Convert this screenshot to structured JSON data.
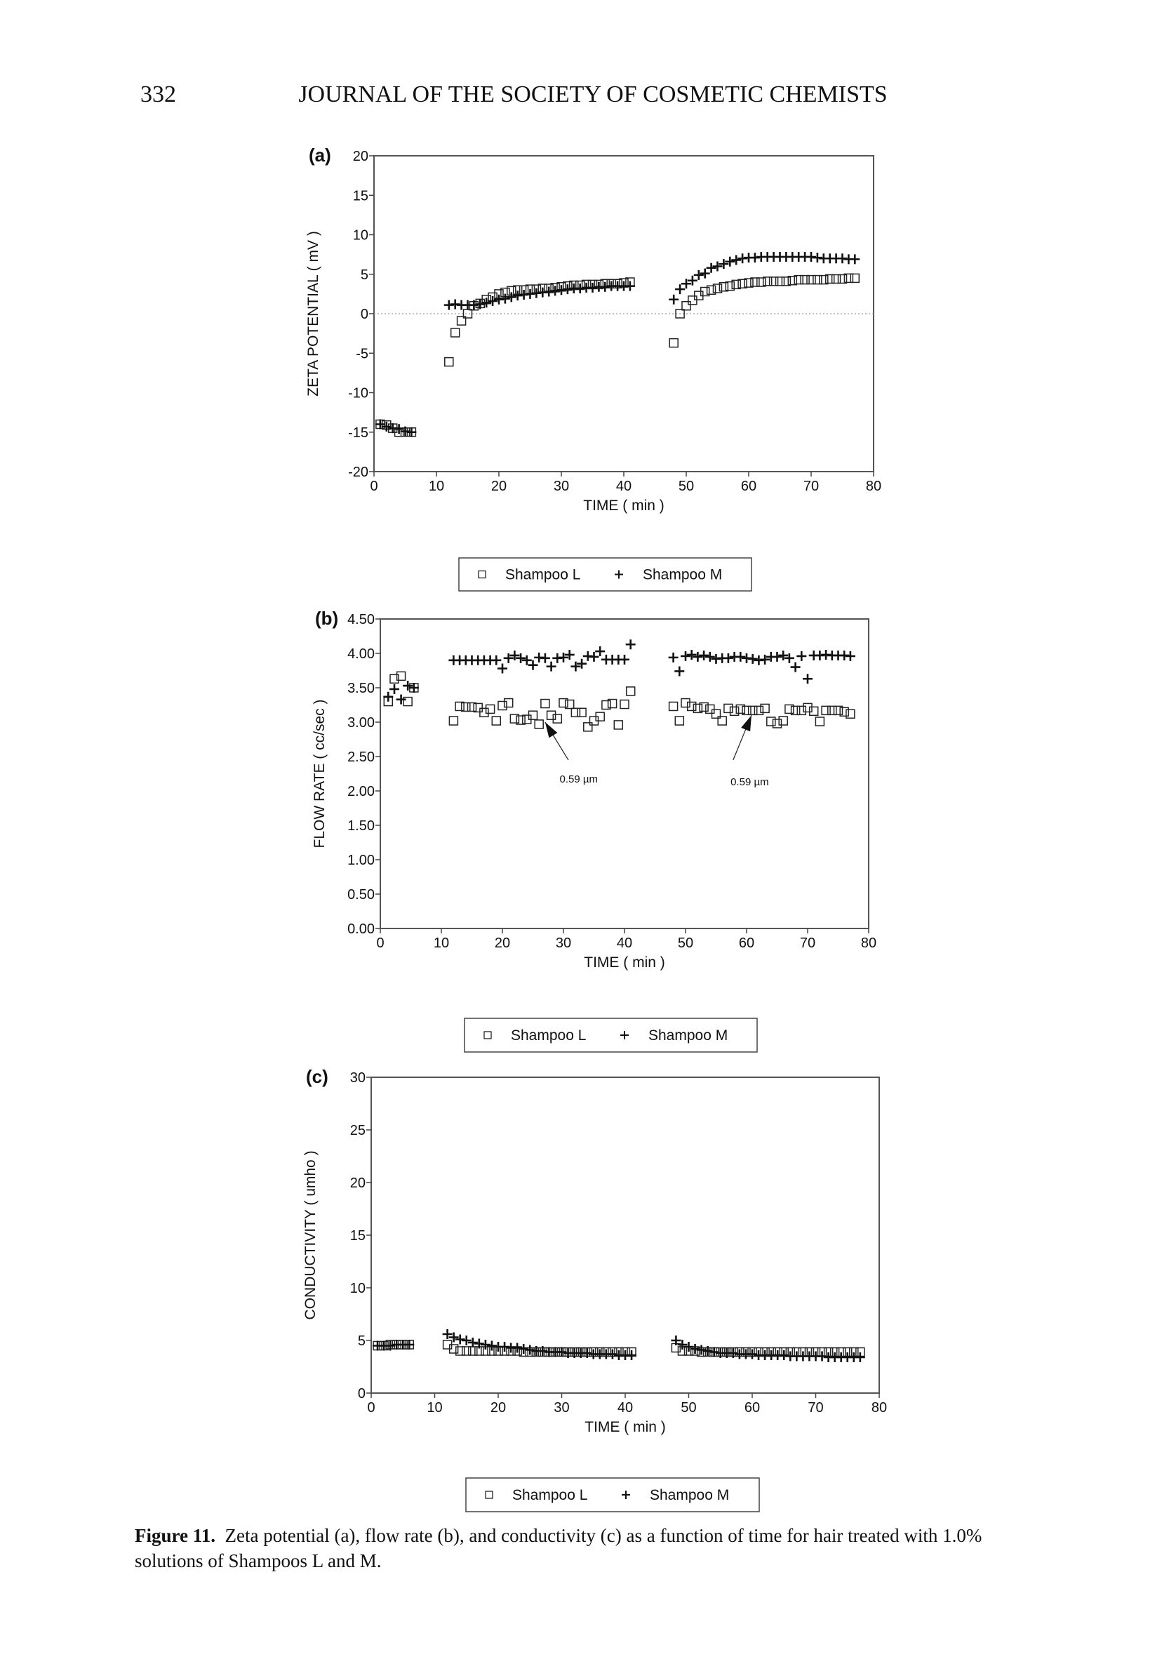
{
  "page": {
    "number": "332",
    "journal_title": "JOURNAL OF THE SOCIETY OF COSMETIC CHEMISTS"
  },
  "caption": {
    "label": "Figure 11.",
    "text": "Zeta potential (a), flow rate (b), and conductivity (c) as a function of time for hair treated with 1.0% solutions of Shampoos L and M."
  },
  "chart_data": [
    {
      "type": "scatter",
      "panel": "(a)",
      "xlabel": "TIME  ( min )",
      "ylabel": "ZETA POTENTIAL  ( mV )",
      "xlim": [
        0,
        80
      ],
      "ylim": [
        -20,
        20
      ],
      "xticks": [
        0,
        10,
        20,
        30,
        40,
        50,
        60,
        70,
        80
      ],
      "yticks": [
        20,
        15,
        10,
        5,
        0,
        -5,
        -10,
        -15,
        -20
      ],
      "ytick_labels": [
        "20",
        "15",
        "10",
        "5",
        "0",
        "-5",
        "-10",
        "-15",
        "-20"
      ],
      "reference_line": 0,
      "legend": [
        "Shampoo L",
        "Shampoo M"
      ],
      "x": [
        1,
        2,
        3,
        4,
        5,
        6,
        12,
        13,
        14,
        15,
        16,
        17,
        18,
        19,
        20,
        21,
        22,
        23,
        24,
        25,
        26,
        27,
        28,
        29,
        30,
        31,
        32,
        33,
        34,
        35,
        36,
        37,
        38,
        39,
        40,
        41,
        48,
        49,
        50,
        51,
        52,
        53,
        54,
        55,
        56,
        57,
        58,
        59,
        60,
        61,
        62,
        63,
        64,
        65,
        66,
        67,
        68,
        69,
        70,
        71,
        72,
        73,
        74,
        75,
        76,
        77
      ],
      "series": [
        {
          "name": "Shampoo L",
          "marker": "square",
          "values": [
            -14,
            -14.1,
            -14.5,
            -15,
            -15,
            -15,
            -6.1,
            -2.4,
            -0.9,
            0,
            1.0,
            1.3,
            1.8,
            2.1,
            2.5,
            2.7,
            2.9,
            3.0,
            3.0,
            3.1,
            3.1,
            3.2,
            3.2,
            3.3,
            3.4,
            3.5,
            3.6,
            3.6,
            3.7,
            3.7,
            3.7,
            3.8,
            3.8,
            3.8,
            3.9,
            4.0,
            -3.7,
            0,
            1.0,
            1.7,
            2.3,
            2.8,
            3.0,
            3.2,
            3.4,
            3.5,
            3.7,
            3.8,
            3.9,
            4.0,
            4.0,
            4.1,
            4.1,
            4.1,
            4.1,
            4.2,
            4.3,
            4.3,
            4.3,
            4.3,
            4.3,
            4.4,
            4.4,
            4.4,
            4.5,
            4.5
          ]
        },
        {
          "name": "Shampoo M",
          "marker": "plus",
          "values": [
            -14,
            -14.3,
            -14.5,
            -14.6,
            -14.9,
            -15,
            1.1,
            1.2,
            1.1,
            1.1,
            1.1,
            1.2,
            1.4,
            1.6,
            1.8,
            1.9,
            2.1,
            2.3,
            2.4,
            2.5,
            2.6,
            2.7,
            2.8,
            2.9,
            3.0,
            3.1,
            3.2,
            3.2,
            3.3,
            3.3,
            3.4,
            3.4,
            3.5,
            3.5,
            3.5,
            3.5,
            1.8,
            3.1,
            3.8,
            4.2,
            4.9,
            5.1,
            5.8,
            6.0,
            6.3,
            6.6,
            6.8,
            7.0,
            7.1,
            7.1,
            7.2,
            7.2,
            7.2,
            7.2,
            7.2,
            7.2,
            7.2,
            7.2,
            7.2,
            7.1,
            7.0,
            7.0,
            7.0,
            7.0,
            6.9,
            6.9
          ]
        }
      ]
    },
    {
      "type": "scatter",
      "panel": "(b)",
      "xlabel": "TIME  ( min )",
      "ylabel": "FLOW RATE  ( cc/sec )",
      "xlim": [
        0,
        80
      ],
      "ylim": [
        0,
        4.5
      ],
      "xticks": [
        0,
        10,
        20,
        30,
        40,
        50,
        60,
        70,
        80
      ],
      "yticks": [
        4.5,
        4,
        3.5,
        3,
        2.5,
        2,
        1.5,
        1,
        0.5,
        0
      ],
      "ytick_labels": [
        "4.50",
        "4.00",
        "3.50",
        "3.00",
        "2.50",
        "2.00",
        "1.50",
        "1.00",
        "0.50",
        "0.00"
      ],
      "legend": [
        "Shampoo L",
        "Shampoo M"
      ],
      "annotations": [
        {
          "text": "0.59 µm",
          "x": 32.5,
          "y": 2.12,
          "arrow_from": [
            30.8,
            2.45
          ],
          "arrow_to": [
            27.0,
            3.0
          ]
        },
        {
          "text": "0.59 µm",
          "x": 60.5,
          "y": 2.08,
          "arrow_from": [
            57.8,
            2.45
          ],
          "arrow_to": [
            60.8,
            3.1
          ]
        }
      ],
      "x": [
        1.3,
        2.3,
        3.4,
        4.5,
        5.5,
        12,
        13,
        14,
        15,
        16,
        17,
        18,
        19,
        20,
        21,
        22,
        23,
        24,
        25,
        26,
        27,
        28,
        29,
        30,
        31,
        32,
        33,
        34,
        35,
        36,
        37,
        38,
        39,
        40,
        41,
        48,
        49,
        50,
        51,
        52,
        53,
        54,
        55,
        56,
        57,
        58,
        59,
        60,
        61,
        62,
        63,
        64,
        65,
        66,
        67,
        68,
        69,
        70,
        71,
        72,
        73,
        74,
        75,
        76,
        77
      ],
      "series": [
        {
          "name": "Shampoo L",
          "marker": "square",
          "values": [
            3.3,
            3.63,
            3.67,
            3.3,
            3.5,
            3.02,
            3.23,
            3.22,
            3.22,
            3.21,
            3.14,
            3.19,
            3.02,
            3.24,
            3.28,
            3.05,
            3.03,
            3.04,
            3.1,
            2.97,
            3.27,
            3.1,
            3.05,
            3.28,
            3.26,
            3.14,
            3.14,
            2.93,
            3.02,
            3.08,
            3.25,
            3.27,
            2.96,
            3.26,
            3.45,
            3.23,
            3.02,
            3.28,
            3.23,
            3.2,
            3.22,
            3.19,
            3.12,
            3.02,
            3.2,
            3.16,
            3.19,
            3.17,
            3.17,
            3.17,
            3.2,
            3.01,
            2.98,
            3.02,
            3.19,
            3.17,
            3.17,
            3.21,
            3.16,
            3.01,
            3.17,
            3.17,
            3.17,
            3.15,
            3.12
          ]
        },
        {
          "name": "Shampoo M",
          "marker": "plus",
          "values": [
            3.37,
            3.48,
            3.33,
            3.53,
            3.5,
            3.9,
            3.9,
            3.9,
            3.9,
            3.9,
            3.9,
            3.9,
            3.9,
            3.78,
            3.93,
            3.97,
            3.93,
            3.9,
            3.83,
            3.94,
            3.93,
            3.81,
            3.93,
            3.94,
            3.98,
            3.81,
            3.85,
            3.96,
            3.95,
            4.03,
            3.91,
            3.91,
            3.91,
            3.91,
            4.13,
            3.94,
            3.74,
            3.96,
            3.98,
            3.95,
            3.97,
            3.95,
            3.92,
            3.93,
            3.93,
            3.95,
            3.95,
            3.93,
            3.92,
            3.9,
            3.91,
            3.95,
            3.95,
            3.97,
            3.93,
            3.8,
            3.96,
            3.63,
            3.97,
            3.97,
            3.98,
            3.97,
            3.97,
            3.97,
            3.96
          ]
        }
      ]
    },
    {
      "type": "scatter",
      "panel": "(c)",
      "xlabel": "TIME  ( min )",
      "ylabel": "CONDUCTIVITY  ( umho )",
      "xlim": [
        0,
        80
      ],
      "ylim": [
        0,
        30
      ],
      "xticks": [
        0,
        10,
        20,
        30,
        40,
        50,
        60,
        70,
        80
      ],
      "yticks": [
        30,
        25,
        20,
        15,
        10,
        5,
        0
      ],
      "ytick_labels": [
        "30",
        "25",
        "20",
        "15",
        "10",
        "5",
        "0"
      ],
      "legend": [
        "Shampoo L",
        "Shampoo M"
      ],
      "x": [
        1,
        2,
        3,
        4,
        5,
        6,
        12,
        13,
        14,
        15,
        16,
        17,
        18,
        19,
        20,
        21,
        22,
        23,
        24,
        25,
        26,
        27,
        28,
        29,
        30,
        31,
        32,
        33,
        34,
        35,
        36,
        37,
        38,
        39,
        40,
        41,
        48,
        49,
        50,
        51,
        52,
        53,
        54,
        55,
        56,
        57,
        58,
        59,
        60,
        61,
        62,
        63,
        64,
        65,
        66,
        67,
        68,
        69,
        70,
        71,
        72,
        73,
        74,
        75,
        76,
        77
      ],
      "series": [
        {
          "name": "Shampoo L",
          "marker": "square",
          "values": [
            4.5,
            4.5,
            4.6,
            4.6,
            4.6,
            4.6,
            4.6,
            4.2,
            4.0,
            4.0,
            4.0,
            4.0,
            4.0,
            4.0,
            4.0,
            4.0,
            4.0,
            4.0,
            3.9,
            3.9,
            3.9,
            3.9,
            3.9,
            3.9,
            3.9,
            3.9,
            3.9,
            3.9,
            3.9,
            3.9,
            3.9,
            3.9,
            3.9,
            3.9,
            3.9,
            3.9,
            4.3,
            4.0,
            4.0,
            4.0,
            3.9,
            3.9,
            3.9,
            3.9,
            3.9,
            3.9,
            3.9,
            3.9,
            3.9,
            3.9,
            3.9,
            3.9,
            3.9,
            3.9,
            3.9,
            3.9,
            3.9,
            3.9,
            3.9,
            3.9,
            3.9,
            3.9,
            3.9,
            3.9,
            3.9,
            3.9
          ]
        },
        {
          "name": "Shampoo M",
          "marker": "plus",
          "values": [
            4.5,
            4.5,
            4.5,
            4.6,
            4.6,
            4.6,
            5.6,
            5.3,
            5.1,
            5.0,
            4.8,
            4.7,
            4.6,
            4.5,
            4.4,
            4.4,
            4.3,
            4.3,
            4.2,
            4.1,
            4.0,
            4.0,
            3.9,
            3.9,
            3.9,
            3.8,
            3.8,
            3.8,
            3.8,
            3.7,
            3.7,
            3.7,
            3.7,
            3.6,
            3.6,
            3.6,
            5.0,
            4.6,
            4.4,
            4.2,
            4.1,
            4.0,
            3.9,
            3.8,
            3.8,
            3.8,
            3.7,
            3.7,
            3.7,
            3.6,
            3.6,
            3.6,
            3.6,
            3.6,
            3.5,
            3.5,
            3.5,
            3.5,
            3.5,
            3.5,
            3.4,
            3.4,
            3.4,
            3.4,
            3.4,
            3.4
          ]
        }
      ]
    }
  ]
}
